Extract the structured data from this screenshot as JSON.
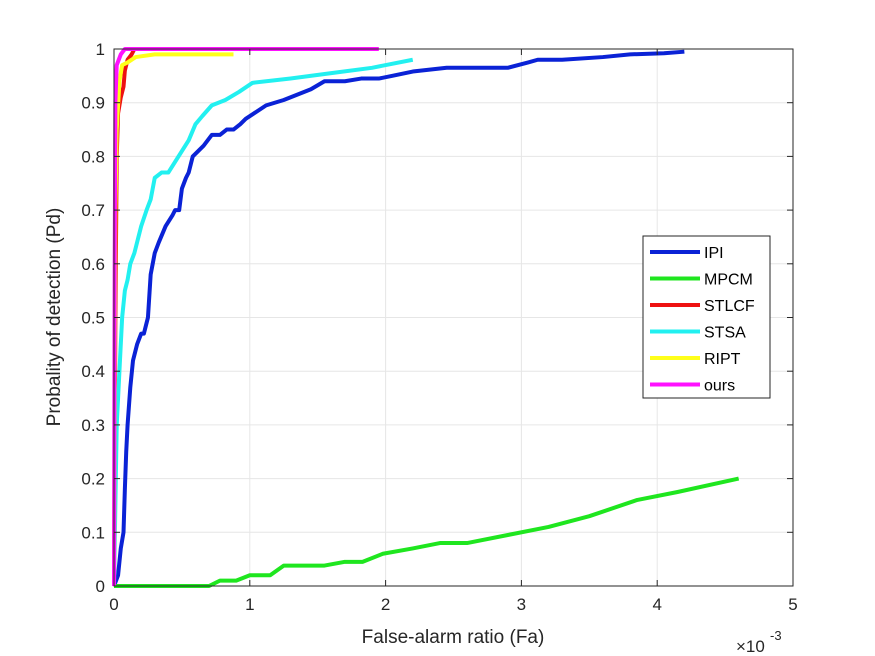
{
  "chart_data": {
    "type": "line",
    "xlabel": "False-alarm ratio (Fa)",
    "ylabel": "Probality of detection (Pd)",
    "x_exponent_base": "×10",
    "x_exponent_power": "-3",
    "xlim": [
      0,
      5
    ],
    "ylim": [
      0,
      1
    ],
    "x_ticks": [
      0,
      1,
      2,
      3,
      4,
      5
    ],
    "x_tick_labels": [
      "0",
      "1",
      "2",
      "3",
      "4",
      "5"
    ],
    "y_ticks": [
      0,
      0.1,
      0.2,
      0.3,
      0.4,
      0.5,
      0.6,
      0.7,
      0.8,
      0.9,
      1
    ],
    "y_tick_labels": [
      "0",
      "0.1",
      "0.2",
      "0.3",
      "0.4",
      "0.5",
      "0.6",
      "0.7",
      "0.8",
      "0.9",
      "1"
    ],
    "grid": true,
    "legend_position": "right",
    "series": [
      {
        "name": "IPI",
        "color": "#0a22d6",
        "points": [
          [
            0,
            0
          ],
          [
            0.03,
            0.02
          ],
          [
            0.05,
            0.07
          ],
          [
            0.07,
            0.1
          ],
          [
            0.08,
            0.18
          ],
          [
            0.09,
            0.25
          ],
          [
            0.1,
            0.3
          ],
          [
            0.12,
            0.37
          ],
          [
            0.14,
            0.42
          ],
          [
            0.17,
            0.45
          ],
          [
            0.2,
            0.47
          ],
          [
            0.22,
            0.47
          ],
          [
            0.25,
            0.5
          ],
          [
            0.27,
            0.58
          ],
          [
            0.3,
            0.62
          ],
          [
            0.33,
            0.64
          ],
          [
            0.38,
            0.67
          ],
          [
            0.43,
            0.69
          ],
          [
            0.45,
            0.7
          ],
          [
            0.48,
            0.7
          ],
          [
            0.5,
            0.74
          ],
          [
            0.53,
            0.76
          ],
          [
            0.55,
            0.77
          ],
          [
            0.58,
            0.8
          ],
          [
            0.62,
            0.81
          ],
          [
            0.66,
            0.82
          ],
          [
            0.72,
            0.84
          ],
          [
            0.78,
            0.84
          ],
          [
            0.83,
            0.85
          ],
          [
            0.88,
            0.85
          ],
          [
            0.93,
            0.86
          ],
          [
            0.97,
            0.87
          ],
          [
            1.03,
            0.88
          ],
          [
            1.12,
            0.895
          ],
          [
            1.25,
            0.905
          ],
          [
            1.35,
            0.915
          ],
          [
            1.45,
            0.925
          ],
          [
            1.55,
            0.94
          ],
          [
            1.7,
            0.94
          ],
          [
            1.82,
            0.945
          ],
          [
            1.95,
            0.945
          ],
          [
            2.05,
            0.95
          ],
          [
            2.2,
            0.958
          ],
          [
            2.45,
            0.965
          ],
          [
            2.7,
            0.965
          ],
          [
            2.9,
            0.965
          ],
          [
            3.05,
            0.975
          ],
          [
            3.12,
            0.98
          ],
          [
            3.3,
            0.98
          ],
          [
            3.6,
            0.985
          ],
          [
            3.8,
            0.99
          ],
          [
            4.05,
            0.992
          ],
          [
            4.2,
            0.995
          ]
        ]
      },
      {
        "name": "MPCM",
        "color": "#1fe61f",
        "points": [
          [
            0,
            0
          ],
          [
            0.7,
            0
          ],
          [
            0.78,
            0.01
          ],
          [
            0.9,
            0.01
          ],
          [
            1,
            0.02
          ],
          [
            1.15,
            0.02
          ],
          [
            1.25,
            0.038
          ],
          [
            1.55,
            0.038
          ],
          [
            1.7,
            0.045
          ],
          [
            1.83,
            0.045
          ],
          [
            1.98,
            0.06
          ],
          [
            2.2,
            0.07
          ],
          [
            2.4,
            0.08
          ],
          [
            2.6,
            0.08
          ],
          [
            2.9,
            0.095
          ],
          [
            3.2,
            0.11
          ],
          [
            3.5,
            0.13
          ],
          [
            3.85,
            0.16
          ],
          [
            4.15,
            0.175
          ],
          [
            4.6,
            0.2
          ]
        ]
      },
      {
        "name": "STLCF",
        "color": "#ee1111",
        "points": [
          [
            0,
            0
          ],
          [
            0.01,
            0.5
          ],
          [
            0.02,
            0.8
          ],
          [
            0.03,
            0.88
          ],
          [
            0.05,
            0.91
          ],
          [
            0.07,
            0.93
          ],
          [
            0.08,
            0.96
          ],
          [
            0.1,
            0.98
          ],
          [
            0.13,
            0.99
          ],
          [
            0.15,
            1
          ]
        ]
      },
      {
        "name": "STSA",
        "color": "#22f0f0",
        "points": [
          [
            0,
            0
          ],
          [
            0.02,
            0.3
          ],
          [
            0.04,
            0.4
          ],
          [
            0.06,
            0.5
          ],
          [
            0.08,
            0.55
          ],
          [
            0.1,
            0.57
          ],
          [
            0.12,
            0.6
          ],
          [
            0.15,
            0.62
          ],
          [
            0.18,
            0.65
          ],
          [
            0.2,
            0.67
          ],
          [
            0.24,
            0.7
          ],
          [
            0.27,
            0.72
          ],
          [
            0.3,
            0.76
          ],
          [
            0.35,
            0.77
          ],
          [
            0.4,
            0.77
          ],
          [
            0.45,
            0.79
          ],
          [
            0.5,
            0.81
          ],
          [
            0.55,
            0.83
          ],
          [
            0.6,
            0.86
          ],
          [
            0.65,
            0.875
          ],
          [
            0.72,
            0.895
          ],
          [
            0.82,
            0.905
          ],
          [
            0.92,
            0.92
          ],
          [
            1.02,
            0.937
          ],
          [
            1.3,
            0.945
          ],
          [
            1.6,
            0.955
          ],
          [
            1.9,
            0.965
          ],
          [
            2.2,
            0.98
          ]
        ]
      },
      {
        "name": "RIPT",
        "color": "#ffff1a",
        "points": [
          [
            0,
            0
          ],
          [
            0.01,
            0.7
          ],
          [
            0.02,
            0.85
          ],
          [
            0.04,
            0.94
          ],
          [
            0.06,
            0.97
          ],
          [
            0.1,
            0.975
          ],
          [
            0.16,
            0.985
          ],
          [
            0.3,
            0.99
          ],
          [
            0.5,
            0.99
          ],
          [
            0.88,
            0.99
          ]
        ]
      },
      {
        "name": "ours",
        "color": "#ff11ff",
        "points": [
          [
            0,
            0
          ],
          [
            0.005,
            0.6
          ],
          [
            0.01,
            0.9
          ],
          [
            0.02,
            0.97
          ],
          [
            0.05,
            0.99
          ],
          [
            0.08,
            1
          ],
          [
            1.95,
            1
          ]
        ]
      }
    ]
  }
}
